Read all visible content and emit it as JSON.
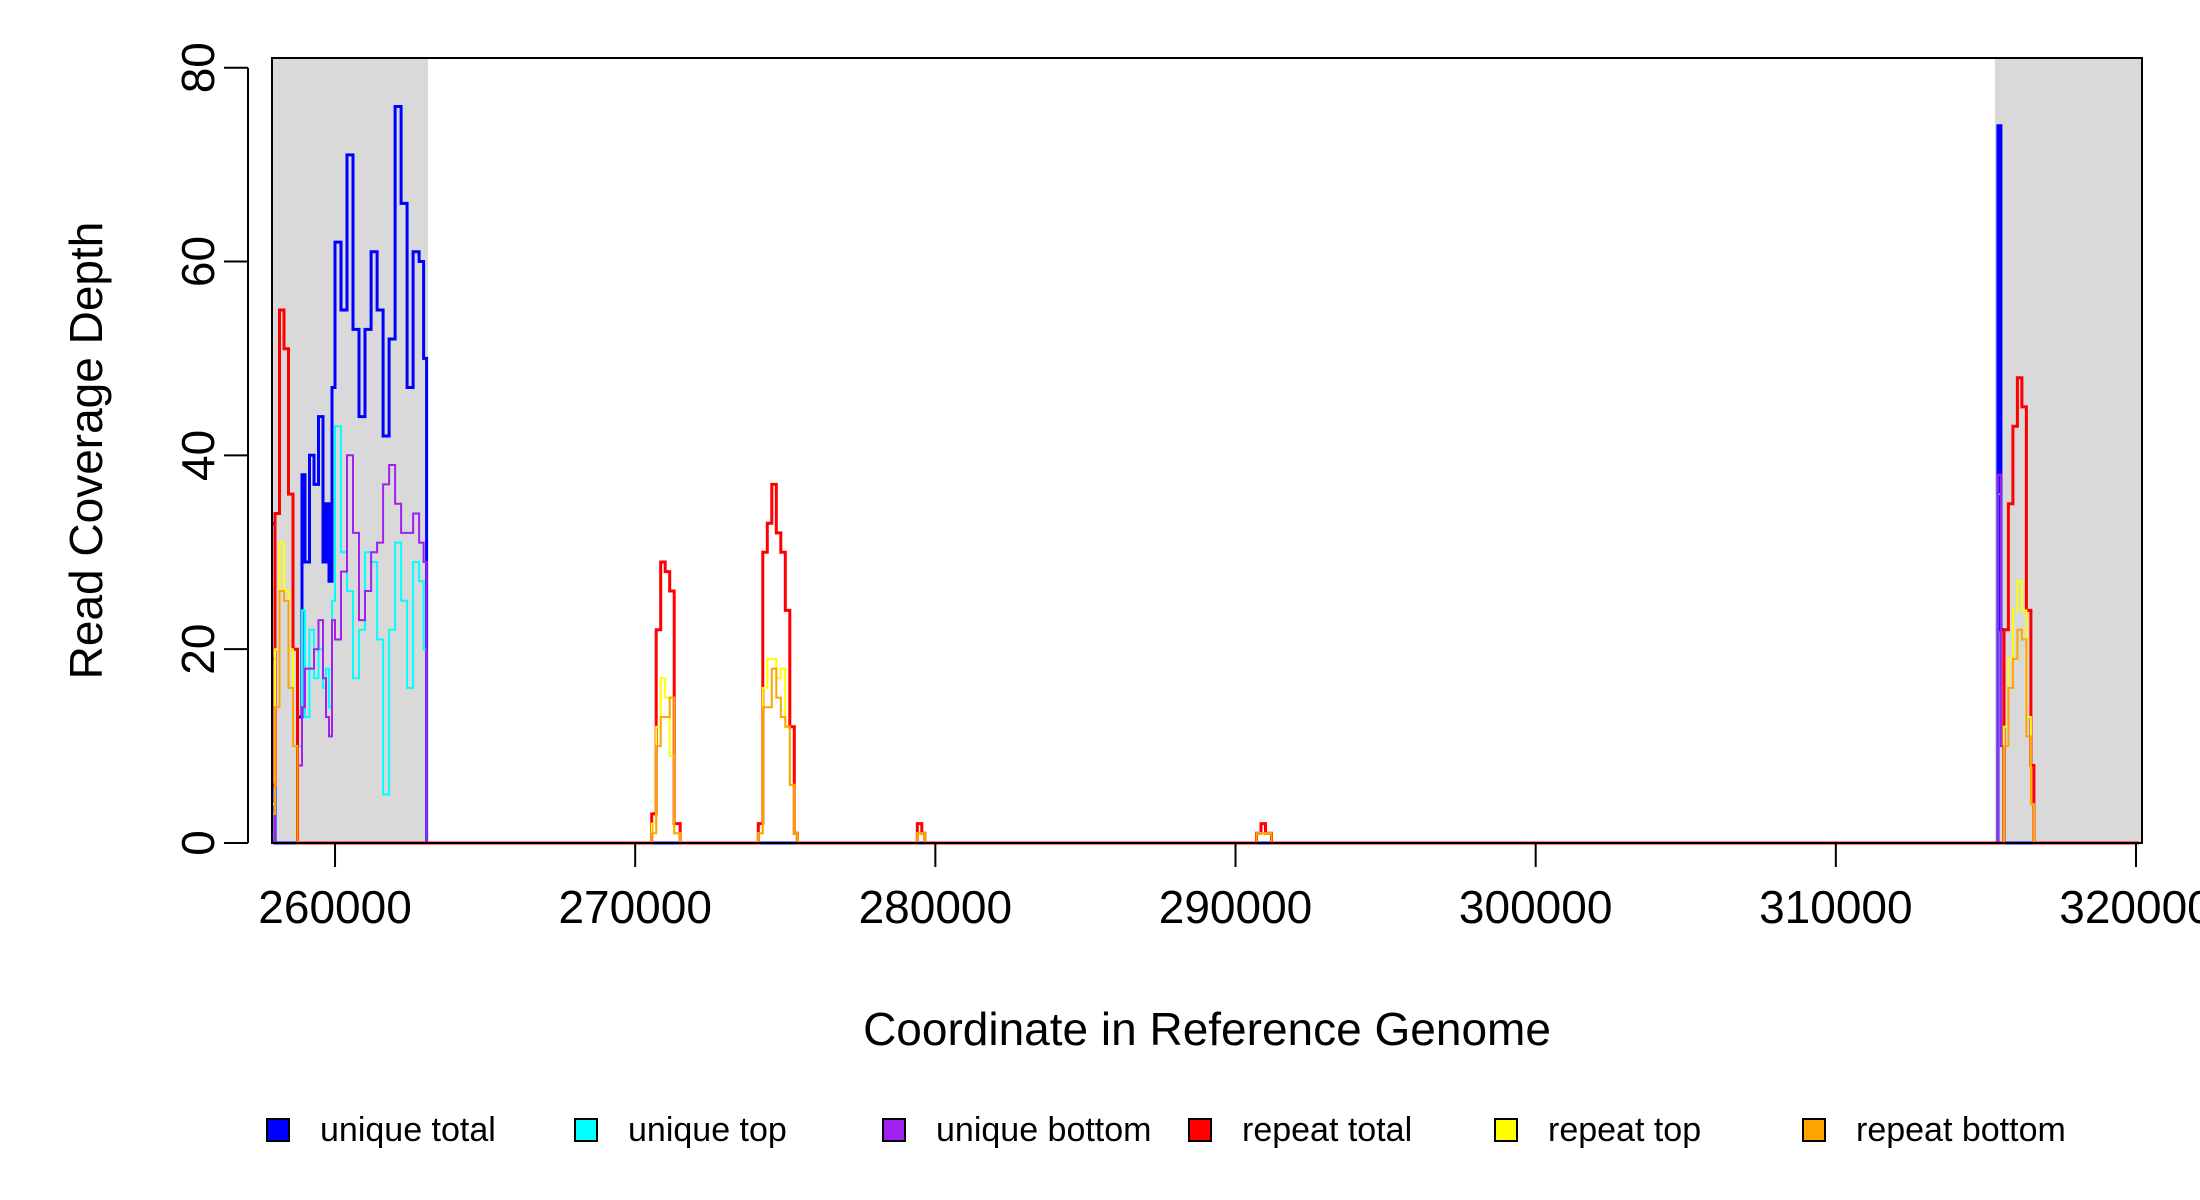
{
  "chart_data": {
    "type": "line",
    "title": "",
    "xlabel": "Coordinate in Reference Genome",
    "ylabel": "Read Coverage Depth",
    "xlim": [
      257900,
      320200
    ],
    "ylim": [
      0,
      81
    ],
    "x_ticks": [
      260000,
      270000,
      280000,
      290000,
      300000,
      310000,
      320000
    ],
    "x_tick_labels": [
      "260000",
      "270000",
      "280000",
      "290000",
      "300000",
      "310000",
      "320000"
    ],
    "y_ticks": [
      0,
      20,
      40,
      60,
      80
    ],
    "y_tick_labels": [
      "0",
      "20",
      "40",
      "60",
      "80"
    ],
    "shaded_regions": [
      {
        "x_start": 257900,
        "x_end": 263100,
        "color": "#d9d9d9"
      },
      {
        "x_start": 315300,
        "x_end": 320500,
        "color": "#d9d9d9"
      }
    ],
    "legend_placement": "bottom",
    "series": [
      {
        "name": "unique total",
        "color": "#0000ff",
        "width": 3,
        "points": [
          [
            257900,
            33
          ],
          [
            258000,
            0
          ],
          [
            258700,
            0
          ],
          [
            258750,
            13
          ],
          [
            258900,
            38
          ],
          [
            259000,
            29
          ],
          [
            259150,
            40
          ],
          [
            259300,
            37
          ],
          [
            259450,
            44
          ],
          [
            259600,
            29
          ],
          [
            259700,
            35
          ],
          [
            259800,
            27
          ],
          [
            259900,
            47
          ],
          [
            260000,
            62
          ],
          [
            260200,
            55
          ],
          [
            260400,
            71
          ],
          [
            260600,
            53
          ],
          [
            260800,
            44
          ],
          [
            261000,
            53
          ],
          [
            261200,
            61
          ],
          [
            261400,
            55
          ],
          [
            261600,
            42
          ],
          [
            261800,
            52
          ],
          [
            262000,
            76
          ],
          [
            262200,
            66
          ],
          [
            262400,
            47
          ],
          [
            262600,
            61
          ],
          [
            262800,
            60
          ],
          [
            262950,
            50
          ],
          [
            263050,
            0
          ],
          [
            315350,
            0
          ],
          [
            315400,
            74
          ],
          [
            315500,
            22
          ],
          [
            315600,
            0
          ],
          [
            320100,
            0
          ]
        ]
      },
      {
        "name": "unique top",
        "color": "#00ffff",
        "width": 2,
        "points": [
          [
            257900,
            14
          ],
          [
            258000,
            0
          ],
          [
            258700,
            0
          ],
          [
            258750,
            10
          ],
          [
            258900,
            24
          ],
          [
            259000,
            13
          ],
          [
            259150,
            22
          ],
          [
            259300,
            17
          ],
          [
            259450,
            20
          ],
          [
            259600,
            16
          ],
          [
            259700,
            18
          ],
          [
            259800,
            14
          ],
          [
            259900,
            25
          ],
          [
            260000,
            43
          ],
          [
            260200,
            30
          ],
          [
            260400,
            26
          ],
          [
            260600,
            17
          ],
          [
            260800,
            22
          ],
          [
            261000,
            30
          ],
          [
            261200,
            29
          ],
          [
            261400,
            21
          ],
          [
            261600,
            5
          ],
          [
            261800,
            22
          ],
          [
            262000,
            31
          ],
          [
            262200,
            25
          ],
          [
            262400,
            16
          ],
          [
            262600,
            29
          ],
          [
            262800,
            27
          ],
          [
            262950,
            20
          ],
          [
            263050,
            0
          ],
          [
            315350,
            0
          ],
          [
            315400,
            36
          ],
          [
            315500,
            12
          ],
          [
            315600,
            0
          ],
          [
            320100,
            0
          ]
        ]
      },
      {
        "name": "unique bottom",
        "color": "#a020f0",
        "width": 2,
        "points": [
          [
            257900,
            19
          ],
          [
            258000,
            0
          ],
          [
            258700,
            0
          ],
          [
            258750,
            8
          ],
          [
            258900,
            14
          ],
          [
            259000,
            18
          ],
          [
            259150,
            18
          ],
          [
            259300,
            20
          ],
          [
            259450,
            23
          ],
          [
            259600,
            17
          ],
          [
            259700,
            13
          ],
          [
            259800,
            11
          ],
          [
            259900,
            23
          ],
          [
            260000,
            21
          ],
          [
            260200,
            28
          ],
          [
            260400,
            40
          ],
          [
            260600,
            32
          ],
          [
            260800,
            23
          ],
          [
            261000,
            26
          ],
          [
            261200,
            30
          ],
          [
            261400,
            31
          ],
          [
            261600,
            37
          ],
          [
            261800,
            39
          ],
          [
            262000,
            35
          ],
          [
            262200,
            32
          ],
          [
            262400,
            32
          ],
          [
            262600,
            34
          ],
          [
            262800,
            31
          ],
          [
            262950,
            29
          ],
          [
            263050,
            0
          ],
          [
            315350,
            0
          ],
          [
            315400,
            38
          ],
          [
            315500,
            10
          ],
          [
            315600,
            0
          ],
          [
            320100,
            0
          ]
        ]
      },
      {
        "name": "repeat total",
        "color": "#ff0000",
        "width": 3,
        "points": [
          [
            257900,
            6
          ],
          [
            258000,
            34
          ],
          [
            258150,
            55
          ],
          [
            258300,
            51
          ],
          [
            258450,
            36
          ],
          [
            258600,
            20
          ],
          [
            258750,
            0
          ],
          [
            270500,
            0
          ],
          [
            270550,
            3
          ],
          [
            270700,
            22
          ],
          [
            270850,
            29
          ],
          [
            271000,
            28
          ],
          [
            271150,
            26
          ],
          [
            271300,
            2
          ],
          [
            271500,
            0
          ],
          [
            274000,
            0
          ],
          [
            274100,
            2
          ],
          [
            274250,
            30
          ],
          [
            274400,
            33
          ],
          [
            274550,
            37
          ],
          [
            274700,
            32
          ],
          [
            274850,
            30
          ],
          [
            275000,
            24
          ],
          [
            275150,
            12
          ],
          [
            275300,
            1
          ],
          [
            275400,
            0
          ],
          [
            279300,
            0
          ],
          [
            279400,
            2
          ],
          [
            279550,
            1
          ],
          [
            279650,
            0
          ],
          [
            290600,
            0
          ],
          [
            290700,
            1
          ],
          [
            290850,
            2
          ],
          [
            291000,
            1
          ],
          [
            291200,
            0
          ],
          [
            315500,
            0
          ],
          [
            315600,
            22
          ],
          [
            315750,
            35
          ],
          [
            315900,
            43
          ],
          [
            316050,
            48
          ],
          [
            316200,
            45
          ],
          [
            316350,
            24
          ],
          [
            316500,
            8
          ],
          [
            316600,
            0
          ],
          [
            320100,
            0
          ]
        ]
      },
      {
        "name": "repeat top",
        "color": "#ffff00",
        "width": 2,
        "points": [
          [
            257900,
            4
          ],
          [
            258000,
            20
          ],
          [
            258150,
            31
          ],
          [
            258300,
            26
          ],
          [
            258450,
            20
          ],
          [
            258600,
            10
          ],
          [
            258750,
            0
          ],
          [
            270500,
            0
          ],
          [
            270550,
            2
          ],
          [
            270700,
            12
          ],
          [
            270850,
            17
          ],
          [
            271000,
            15
          ],
          [
            271150,
            9
          ],
          [
            271300,
            1
          ],
          [
            271500,
            0
          ],
          [
            274000,
            0
          ],
          [
            274100,
            1
          ],
          [
            274250,
            16
          ],
          [
            274400,
            19
          ],
          [
            274550,
            19
          ],
          [
            274700,
            17
          ],
          [
            274850,
            18
          ],
          [
            275000,
            12
          ],
          [
            275150,
            6
          ],
          [
            275300,
            1
          ],
          [
            275400,
            0
          ],
          [
            279300,
            0
          ],
          [
            279400,
            1
          ],
          [
            279550,
            1
          ],
          [
            279650,
            0
          ],
          [
            290600,
            0
          ],
          [
            290700,
            1
          ],
          [
            290850,
            1
          ],
          [
            291000,
            1
          ],
          [
            291200,
            0
          ],
          [
            315500,
            0
          ],
          [
            315600,
            12
          ],
          [
            315750,
            19
          ],
          [
            315900,
            24
          ],
          [
            316050,
            27
          ],
          [
            316200,
            24
          ],
          [
            316350,
            13
          ],
          [
            316500,
            4
          ],
          [
            316600,
            0
          ],
          [
            320100,
            0
          ]
        ]
      },
      {
        "name": "repeat bottom",
        "color": "#ffa500",
        "width": 2,
        "points": [
          [
            257900,
            3
          ],
          [
            258000,
            14
          ],
          [
            258150,
            26
          ],
          [
            258300,
            25
          ],
          [
            258450,
            16
          ],
          [
            258600,
            10
          ],
          [
            258750,
            0
          ],
          [
            270500,
            0
          ],
          [
            270550,
            1
          ],
          [
            270700,
            10
          ],
          [
            270850,
            13
          ],
          [
            271000,
            13
          ],
          [
            271150,
            15
          ],
          [
            271300,
            1
          ],
          [
            271500,
            0
          ],
          [
            274000,
            0
          ],
          [
            274100,
            1
          ],
          [
            274250,
            14
          ],
          [
            274400,
            14
          ],
          [
            274550,
            18
          ],
          [
            274700,
            15
          ],
          [
            274850,
            13
          ],
          [
            275000,
            12
          ],
          [
            275150,
            6
          ],
          [
            275300,
            1
          ],
          [
            275400,
            0
          ],
          [
            279300,
            0
          ],
          [
            279400,
            1
          ],
          [
            279550,
            1
          ],
          [
            279650,
            0
          ],
          [
            290600,
            0
          ],
          [
            290700,
            1
          ],
          [
            290850,
            1
          ],
          [
            291000,
            1
          ],
          [
            291200,
            0
          ],
          [
            315500,
            0
          ],
          [
            315600,
            10
          ],
          [
            315750,
            16
          ],
          [
            315900,
            19
          ],
          [
            316050,
            22
          ],
          [
            316200,
            21
          ],
          [
            316350,
            11
          ],
          [
            316500,
            4
          ],
          [
            316600,
            0
          ],
          [
            320100,
            0
          ]
        ]
      }
    ]
  }
}
